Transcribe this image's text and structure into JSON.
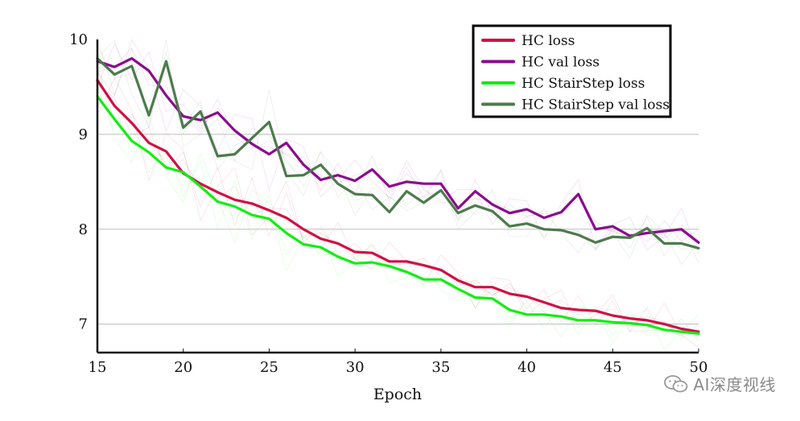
{
  "watermark": {
    "text": "AI深度视线"
  },
  "chart_data": {
    "type": "line",
    "xlabel": "Epoch",
    "ylabel": "",
    "xlim": [
      15,
      50
    ],
    "ylim": [
      6.7,
      10
    ],
    "x_ticks": [
      15,
      20,
      25,
      30,
      35,
      40,
      45,
      50
    ],
    "y_ticks": [
      7,
      8,
      9,
      10
    ],
    "y_gridlines": [
      7,
      8,
      9
    ],
    "legend_position": "top-right",
    "x": [
      15,
      16,
      17,
      18,
      19,
      20,
      21,
      22,
      23,
      24,
      25,
      26,
      27,
      28,
      29,
      30,
      31,
      32,
      33,
      34,
      35,
      36,
      37,
      38,
      39,
      40,
      41,
      42,
      43,
      44,
      45,
      46,
      47,
      48,
      49,
      50
    ],
    "series": [
      {
        "name": "HC loss",
        "color": "#d10f45",
        "values": [
          9.57,
          9.3,
          9.12,
          8.91,
          8.82,
          8.59,
          8.48,
          8.39,
          8.31,
          8.27,
          8.2,
          8.12,
          8.0,
          7.9,
          7.85,
          7.76,
          7.75,
          7.66,
          7.66,
          7.62,
          7.57,
          7.46,
          7.39,
          7.39,
          7.32,
          7.29,
          7.23,
          7.17,
          7.15,
          7.14,
          7.09,
          7.06,
          7.04,
          7.0,
          6.95,
          6.92
        ]
      },
      {
        "name": "HC val loss",
        "color": "#8a0c8c",
        "values": [
          9.77,
          9.71,
          9.8,
          9.67,
          9.41,
          9.19,
          9.15,
          9.23,
          9.04,
          8.9,
          8.79,
          8.91,
          8.68,
          8.52,
          8.57,
          8.51,
          8.63,
          8.45,
          8.5,
          8.48,
          8.48,
          8.22,
          8.4,
          8.26,
          8.17,
          8.21,
          8.12,
          8.18,
          8.37,
          8.0,
          8.03,
          7.93,
          7.96,
          7.98,
          8.0,
          7.86
        ]
      },
      {
        "name": "HC StairStep loss",
        "color": "#11ee11",
        "values": [
          9.4,
          9.16,
          8.93,
          8.81,
          8.65,
          8.6,
          8.45,
          8.29,
          8.24,
          8.15,
          8.11,
          7.96,
          7.84,
          7.81,
          7.71,
          7.64,
          7.65,
          7.61,
          7.55,
          7.47,
          7.47,
          7.37,
          7.28,
          7.27,
          7.15,
          7.1,
          7.1,
          7.08,
          7.04,
          7.04,
          7.02,
          7.01,
          6.99,
          6.94,
          6.92,
          6.9
        ]
      },
      {
        "name": "HC StairStep val loss",
        "color": "#4d7a4d",
        "values": [
          9.8,
          9.63,
          9.72,
          9.2,
          9.77,
          9.07,
          9.24,
          8.77,
          8.79,
          8.96,
          9.13,
          8.56,
          8.57,
          8.68,
          8.48,
          8.37,
          8.36,
          8.18,
          8.4,
          8.28,
          8.41,
          8.17,
          8.25,
          8.19,
          8.03,
          8.06,
          8.0,
          7.99,
          7.94,
          7.86,
          7.92,
          7.91,
          8.01,
          7.85,
          7.85,
          7.8
        ]
      }
    ]
  }
}
